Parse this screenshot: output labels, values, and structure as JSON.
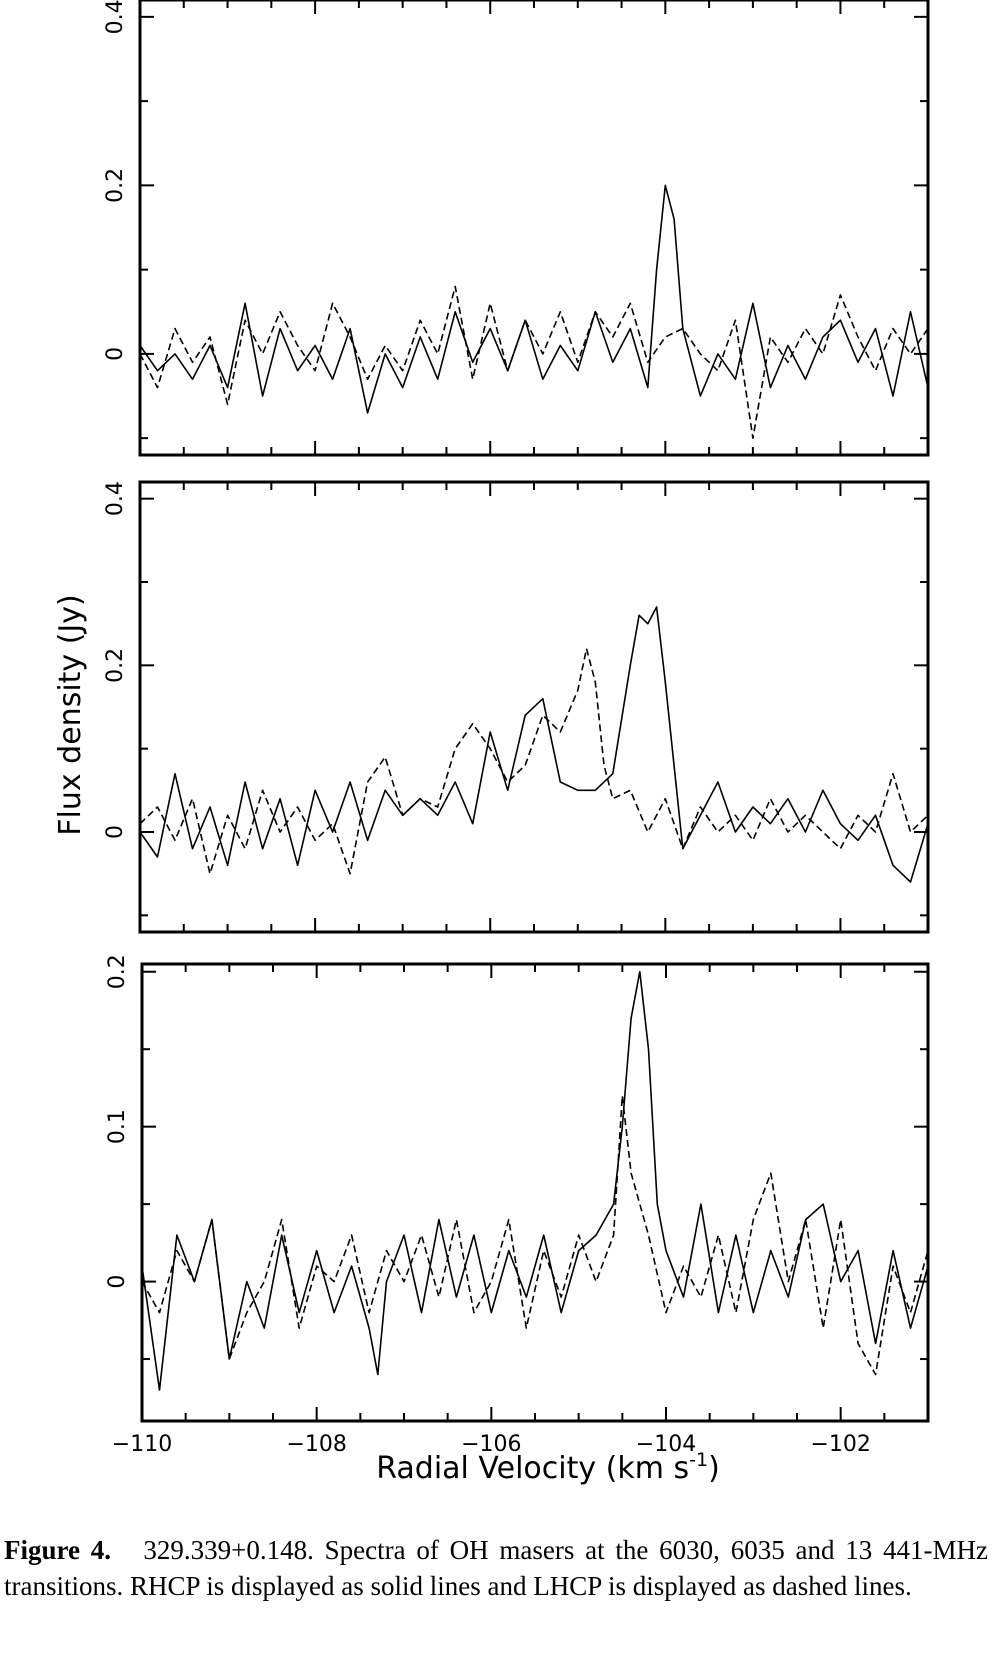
{
  "figure": {
    "ylabel": "Flux density (Jy)",
    "xlabel_main": "Radial Velocity (km s",
    "xlabel_sup": "-1",
    "xlabel_close": ")"
  },
  "caption": {
    "label": "Figure 4.",
    "text": "329.339+0.148. Spectra of OH masers at the 6030, 6035 and 13 441-MHz transitions. RHCP is displayed as solid lines and LHCP is displayed as dashed lines."
  },
  "chart_data": [
    {
      "type": "line",
      "panel": "top",
      "xlim": [
        -110,
        -101
      ],
      "ylim": [
        -0.12,
        0.42
      ],
      "yticks": [
        0,
        0.2,
        0.4
      ],
      "ytick_labels": [
        "0",
        "0.2",
        "0.4"
      ],
      "xticks": [
        -110,
        -108,
        -106,
        -104,
        -102
      ],
      "series": [
        {
          "style": "solid",
          "x": [
            -110.0,
            -109.8,
            -109.6,
            -109.4,
            -109.2,
            -109.0,
            -108.8,
            -108.6,
            -108.4,
            -108.2,
            -108.0,
            -107.8,
            -107.6,
            -107.4,
            -107.2,
            -107.0,
            -106.8,
            -106.6,
            -106.4,
            -106.2,
            -106.0,
            -105.8,
            -105.6,
            -105.4,
            -105.2,
            -105.0,
            -104.8,
            -104.6,
            -104.4,
            -104.2,
            -104.1,
            -104.0,
            -103.9,
            -103.8,
            -103.6,
            -103.4,
            -103.2,
            -103.0,
            -102.8,
            -102.6,
            -102.4,
            -102.2,
            -102.0,
            -101.8,
            -101.6,
            -101.4,
            -101.2,
            -101.0
          ],
          "y": [
            0.01,
            -0.02,
            0.0,
            -0.03,
            0.01,
            -0.04,
            0.06,
            -0.05,
            0.03,
            -0.02,
            0.01,
            -0.03,
            0.03,
            -0.07,
            0.0,
            -0.04,
            0.02,
            -0.03,
            0.05,
            -0.01,
            0.03,
            -0.02,
            0.04,
            -0.03,
            0.01,
            -0.02,
            0.05,
            -0.01,
            0.03,
            -0.04,
            0.1,
            0.2,
            0.16,
            0.03,
            -0.05,
            0.0,
            -0.03,
            0.06,
            -0.04,
            0.01,
            -0.03,
            0.02,
            0.04,
            -0.01,
            0.03,
            -0.05,
            0.05,
            -0.04
          ]
        },
        {
          "style": "dashed",
          "x": [
            -110.0,
            -109.8,
            -109.6,
            -109.4,
            -109.2,
            -109.0,
            -108.8,
            -108.6,
            -108.4,
            -108.2,
            -108.0,
            -107.8,
            -107.6,
            -107.4,
            -107.2,
            -107.0,
            -106.8,
            -106.6,
            -106.4,
            -106.2,
            -106.0,
            -105.8,
            -105.6,
            -105.4,
            -105.2,
            -105.0,
            -104.8,
            -104.6,
            -104.4,
            -104.2,
            -104.0,
            -103.8,
            -103.6,
            -103.4,
            -103.2,
            -103.0,
            -102.8,
            -102.6,
            -102.4,
            -102.2,
            -102.0,
            -101.8,
            -101.6,
            -101.4,
            -101.2,
            -101.0
          ],
          "y": [
            0.0,
            -0.04,
            0.03,
            -0.01,
            0.02,
            -0.06,
            0.04,
            0.0,
            0.05,
            0.01,
            -0.02,
            0.06,
            0.02,
            -0.03,
            0.01,
            -0.02,
            0.04,
            0.0,
            0.08,
            -0.03,
            0.06,
            -0.02,
            0.04,
            0.0,
            0.05,
            -0.01,
            0.05,
            0.02,
            0.06,
            -0.01,
            0.02,
            0.03,
            0.0,
            -0.02,
            0.04,
            -0.1,
            0.02,
            -0.01,
            0.03,
            0.0,
            0.07,
            0.02,
            -0.02,
            0.03,
            0.0,
            0.03
          ]
        }
      ]
    },
    {
      "type": "line",
      "panel": "middle",
      "xlim": [
        -110,
        -101
      ],
      "ylim": [
        -0.12,
        0.42
      ],
      "yticks": [
        0,
        0.2,
        0.4
      ],
      "ytick_labels": [
        "0",
        "0.2",
        "0.4"
      ],
      "xticks": [
        -110,
        -108,
        -106,
        -104,
        -102
      ],
      "series": [
        {
          "style": "solid",
          "x": [
            -110.0,
            -109.8,
            -109.6,
            -109.4,
            -109.2,
            -109.0,
            -108.8,
            -108.6,
            -108.4,
            -108.2,
            -108.0,
            -107.8,
            -107.6,
            -107.4,
            -107.2,
            -107.0,
            -106.8,
            -106.6,
            -106.4,
            -106.2,
            -106.0,
            -105.8,
            -105.6,
            -105.4,
            -105.2,
            -105.0,
            -104.8,
            -104.6,
            -104.4,
            -104.3,
            -104.2,
            -104.1,
            -104.0,
            -103.8,
            -103.6,
            -103.4,
            -103.2,
            -103.0,
            -102.8,
            -102.6,
            -102.4,
            -102.2,
            -102.0,
            -101.8,
            -101.6,
            -101.4,
            -101.2,
            -101.0
          ],
          "y": [
            0.0,
            -0.03,
            0.07,
            -0.02,
            0.03,
            -0.04,
            0.06,
            -0.02,
            0.04,
            -0.04,
            0.05,
            0.0,
            0.06,
            -0.01,
            0.05,
            0.02,
            0.04,
            0.02,
            0.06,
            0.01,
            0.12,
            0.05,
            0.14,
            0.16,
            0.06,
            0.05,
            0.05,
            0.07,
            0.2,
            0.26,
            0.25,
            0.27,
            0.18,
            -0.02,
            0.02,
            0.06,
            0.0,
            0.03,
            0.01,
            0.04,
            0.0,
            0.05,
            0.01,
            -0.01,
            0.02,
            -0.04,
            -0.06,
            0.01
          ]
        },
        {
          "style": "dashed",
          "x": [
            -110.0,
            -109.8,
            -109.6,
            -109.4,
            -109.2,
            -109.0,
            -108.8,
            -108.6,
            -108.4,
            -108.2,
            -108.0,
            -107.8,
            -107.6,
            -107.4,
            -107.2,
            -107.0,
            -106.8,
            -106.6,
            -106.4,
            -106.2,
            -106.0,
            -105.8,
            -105.6,
            -105.4,
            -105.2,
            -105.0,
            -104.9,
            -104.8,
            -104.7,
            -104.6,
            -104.4,
            -104.2,
            -104.0,
            -103.8,
            -103.6,
            -103.4,
            -103.2,
            -103.0,
            -102.8,
            -102.6,
            -102.4,
            -102.2,
            -102.0,
            -101.8,
            -101.6,
            -101.4,
            -101.2,
            -101.0
          ],
          "y": [
            0.01,
            0.03,
            -0.01,
            0.04,
            -0.05,
            0.02,
            -0.02,
            0.05,
            0.0,
            0.03,
            -0.01,
            0.01,
            -0.05,
            0.06,
            0.09,
            0.02,
            0.04,
            0.03,
            0.1,
            0.13,
            0.1,
            0.06,
            0.08,
            0.14,
            0.12,
            0.17,
            0.22,
            0.18,
            0.08,
            0.04,
            0.05,
            0.0,
            0.04,
            -0.02,
            0.03,
            0.0,
            0.02,
            -0.01,
            0.04,
            0.0,
            0.02,
            0.0,
            -0.02,
            0.02,
            0.0,
            0.07,
            0.0,
            0.02
          ]
        }
      ]
    },
    {
      "type": "line",
      "panel": "bottom",
      "xlim": [
        -110,
        -101
      ],
      "ylim": [
        -0.09,
        0.205
      ],
      "yticks": [
        0,
        0.1,
        0.2
      ],
      "ytick_labels": [
        "0",
        "0.1",
        "0.2"
      ],
      "xticks": [
        -110,
        -108,
        -106,
        -104,
        -102
      ],
      "xtick_labels": [
        "−110",
        "−108",
        "−106",
        "−104",
        "−102"
      ],
      "series": [
        {
          "style": "solid",
          "x": [
            -110.0,
            -109.8,
            -109.6,
            -109.4,
            -109.2,
            -109.0,
            -108.8,
            -108.6,
            -108.4,
            -108.2,
            -108.0,
            -107.8,
            -107.6,
            -107.4,
            -107.3,
            -107.2,
            -107.0,
            -106.8,
            -106.6,
            -106.4,
            -106.2,
            -106.0,
            -105.8,
            -105.6,
            -105.4,
            -105.2,
            -105.0,
            -104.8,
            -104.6,
            -104.5,
            -104.4,
            -104.3,
            -104.2,
            -104.1,
            -104.0,
            -103.8,
            -103.6,
            -103.4,
            -103.2,
            -103.0,
            -102.8,
            -102.6,
            -102.4,
            -102.2,
            -102.0,
            -101.8,
            -101.6,
            -101.4,
            -101.2,
            -101.0
          ],
          "y": [
            0.01,
            -0.07,
            0.03,
            0.0,
            0.04,
            -0.05,
            0.0,
            -0.03,
            0.03,
            -0.02,
            0.02,
            -0.02,
            0.01,
            -0.03,
            -0.06,
            0.0,
            0.03,
            -0.02,
            0.04,
            -0.01,
            0.03,
            -0.02,
            0.02,
            -0.01,
            0.03,
            -0.02,
            0.02,
            0.03,
            0.05,
            0.1,
            0.17,
            0.2,
            0.15,
            0.05,
            0.02,
            -0.01,
            0.05,
            -0.02,
            0.03,
            -0.02,
            0.02,
            -0.01,
            0.04,
            0.05,
            0.0,
            0.02,
            -0.04,
            0.02,
            -0.03,
            0.01
          ]
        },
        {
          "style": "dashed",
          "x": [
            -110.0,
            -109.8,
            -109.6,
            -109.4,
            -109.2,
            -109.0,
            -108.8,
            -108.6,
            -108.4,
            -108.2,
            -108.0,
            -107.8,
            -107.6,
            -107.4,
            -107.2,
            -107.0,
            -106.8,
            -106.6,
            -106.4,
            -106.2,
            -106.0,
            -105.8,
            -105.6,
            -105.4,
            -105.2,
            -105.0,
            -104.8,
            -104.6,
            -104.5,
            -104.4,
            -104.3,
            -104.2,
            -104.0,
            -103.8,
            -103.6,
            -103.4,
            -103.2,
            -103.0,
            -102.8,
            -102.6,
            -102.4,
            -102.2,
            -102.0,
            -101.8,
            -101.6,
            -101.4,
            -101.2,
            -101.0
          ],
          "y": [
            0.0,
            -0.02,
            0.02,
            0.0,
            0.04,
            -0.05,
            -0.02,
            0.0,
            0.04,
            -0.03,
            0.01,
            0.0,
            0.03,
            -0.02,
            0.02,
            0.0,
            0.03,
            -0.01,
            0.04,
            -0.02,
            0.0,
            0.04,
            -0.03,
            0.02,
            -0.01,
            0.03,
            0.0,
            0.03,
            0.12,
            0.07,
            0.05,
            0.03,
            -0.02,
            0.01,
            -0.01,
            0.03,
            -0.02,
            0.04,
            0.07,
            0.0,
            0.04,
            -0.03,
            0.04,
            -0.04,
            -0.06,
            0.01,
            -0.02,
            0.02
          ]
        }
      ]
    }
  ]
}
